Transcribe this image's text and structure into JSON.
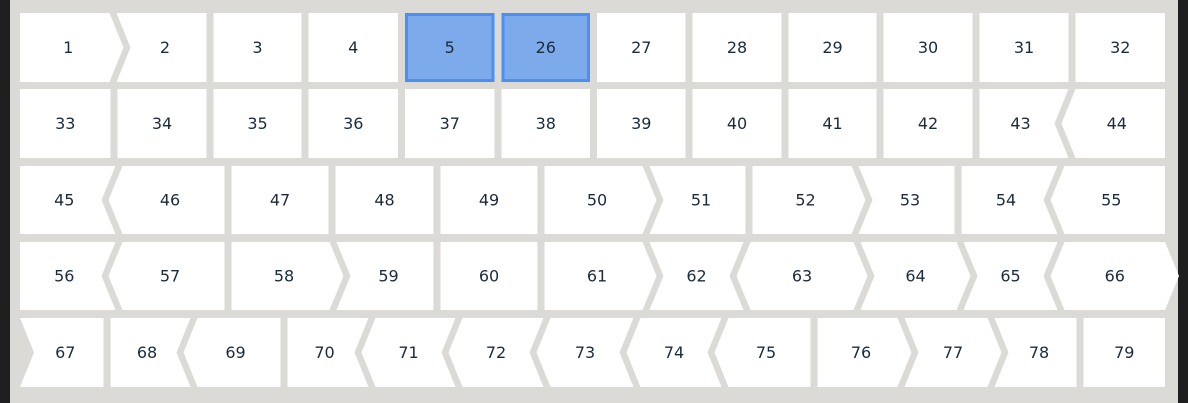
{
  "colors": {
    "background": "#dbdad6",
    "cell": "#ffffff",
    "selected_fill": "#7daaea",
    "selected_border": "#4a90f0",
    "text": "#1c2b3c"
  },
  "rows": [
    {
      "cells": [
        "1",
        "2",
        "3",
        "4",
        "5",
        "26",
        "27",
        "28",
        "29",
        "30",
        "31",
        "32"
      ],
      "left_edge": "|",
      "right_edge": "|",
      "separators": [
        ">",
        "|",
        "|",
        "|",
        "|",
        "|",
        "|",
        "|",
        "|",
        "|",
        "|"
      ],
      "selected": [
        "5",
        "26"
      ]
    },
    {
      "cells": [
        "33",
        "34",
        "35",
        "36",
        "37",
        "38",
        "39",
        "40",
        "41",
        "42",
        "43",
        "44"
      ],
      "left_edge": "|",
      "right_edge": "|",
      "separators": [
        "|",
        "|",
        "|",
        "|",
        "|",
        "|",
        "|",
        "|",
        "|",
        "|",
        "<"
      ],
      "selected": []
    },
    {
      "cells": [
        "45",
        "46",
        "47",
        "48",
        "49",
        "50",
        "51",
        "52",
        "53",
        "54",
        "55"
      ],
      "left_edge": "|",
      "right_edge": "|",
      "separators": [
        "<",
        "|",
        "|",
        "|",
        "|",
        ">",
        "|",
        ">",
        "|",
        "<"
      ],
      "selected": []
    },
    {
      "cells": [
        "56",
        "57",
        "58",
        "59",
        "60",
        "61",
        "62",
        "63",
        "64",
        "65",
        "66"
      ],
      "left_edge": "|",
      "right_edge": ">",
      "separators": [
        "<",
        "|",
        ">",
        "|",
        "|",
        ">",
        "<",
        ">",
        ">",
        "<"
      ],
      "selected": []
    },
    {
      "cells": [
        "67",
        "68",
        "69",
        "70",
        "71",
        "72",
        "73",
        "74",
        "75",
        "76",
        "77",
        "78",
        "79"
      ],
      "left_edge": ">",
      "right_edge": "|",
      "separators": [
        "|",
        "<",
        "|",
        "<",
        "<",
        "<",
        "<",
        "<",
        "|",
        ">",
        ">",
        "|"
      ],
      "selected": []
    }
  ]
}
